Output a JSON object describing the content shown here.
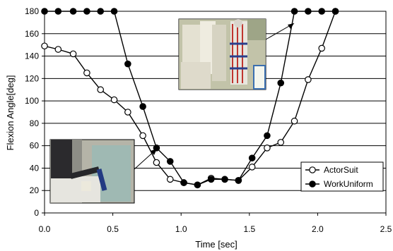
{
  "chart_data": {
    "type": "line",
    "xlabel": "Time [sec]",
    "ylabel": "Flexion Angle[deg]",
    "xlim": [
      0,
      2.5
    ],
    "ylim": [
      0,
      180
    ],
    "x_ticks": [
      "0.0",
      "0.5",
      "1.0",
      "1.5",
      "2.0",
      "2.5"
    ],
    "y_ticks": [
      "0",
      "20",
      "40",
      "60",
      "80",
      "100",
      "120",
      "140",
      "160",
      "180"
    ],
    "grid": "horizontal",
    "legend_position": "bottom-right",
    "series": [
      {
        "name": "ActorSuit",
        "marker": "open-circle",
        "color": "#000000",
        "x": [
          0.0,
          0.1,
          0.21,
          0.31,
          0.41,
          0.51,
          0.61,
          0.72,
          0.82,
          0.92,
          1.02,
          1.12,
          1.22,
          1.32,
          1.42,
          1.52,
          1.63,
          1.73,
          1.83,
          1.93,
          2.03,
          2.13
        ],
        "y": [
          149,
          146,
          142,
          125,
          110,
          101,
          90,
          69,
          45,
          30,
          27,
          25,
          31,
          30,
          29,
          41,
          58,
          63,
          82,
          119,
          147,
          180
        ]
      },
      {
        "name": "WorkUniform",
        "marker": "filled-circle",
        "color": "#000000",
        "x": [
          0.0,
          0.1,
          0.21,
          0.31,
          0.41,
          0.51,
          0.61,
          0.72,
          0.82,
          0.92,
          1.02,
          1.12,
          1.22,
          1.32,
          1.42,
          1.52,
          1.63,
          1.73,
          1.83,
          1.93,
          2.03,
          2.13
        ],
        "y": [
          180,
          180,
          180,
          180,
          180,
          180,
          133,
          95,
          58,
          46,
          27,
          25,
          30,
          30,
          29,
          49,
          69,
          116,
          180,
          180,
          180,
          180
        ]
      }
    ]
  }
}
